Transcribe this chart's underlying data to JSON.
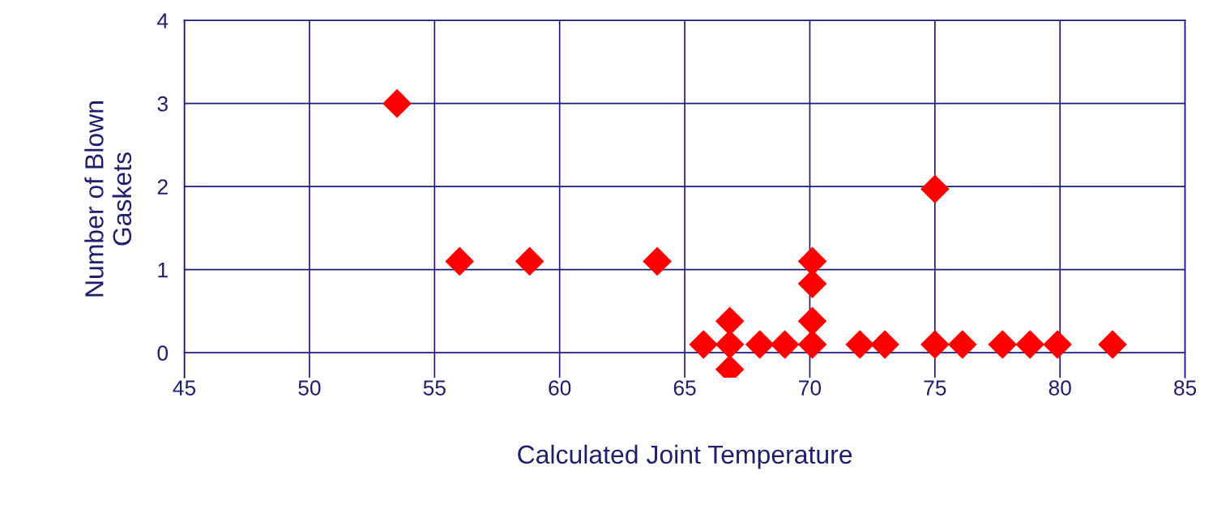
{
  "chart_data": {
    "type": "scatter",
    "xlabel": "Calculated Joint Temperature",
    "ylabel": "Number of Blown\nGaskets",
    "x": [
      53.5,
      56,
      58.8,
      63.9,
      65.75,
      66.8,
      66.8,
      66.8,
      68,
      69,
      70.1,
      70.1,
      70.1,
      70.1,
      72,
      73,
      75,
      75,
      76.1,
      77.7,
      78.8,
      79.9,
      82.1
    ],
    "series": [
      {
        "color": "#ff0000",
        "values": [
          3.0,
          1.1,
          1.1,
          1.1,
          0.1,
          0.38,
          0.1,
          -0.2,
          0.1,
          0.1,
          1.1,
          0.83,
          0.38,
          0.1,
          0.1,
          0.1,
          1.97,
          0.1,
          0.1,
          0.1,
          0.1,
          0.1,
          0.1
        ]
      }
    ],
    "xlim": [
      45,
      85
    ],
    "xticks": [
      45,
      50,
      55,
      60,
      65,
      70,
      75,
      80,
      85
    ],
    "ylim": [
      -0.3,
      4
    ],
    "yticks": [
      0,
      1,
      2,
      3,
      4
    ],
    "grid": true,
    "marker": "diamond",
    "legend": false
  }
}
